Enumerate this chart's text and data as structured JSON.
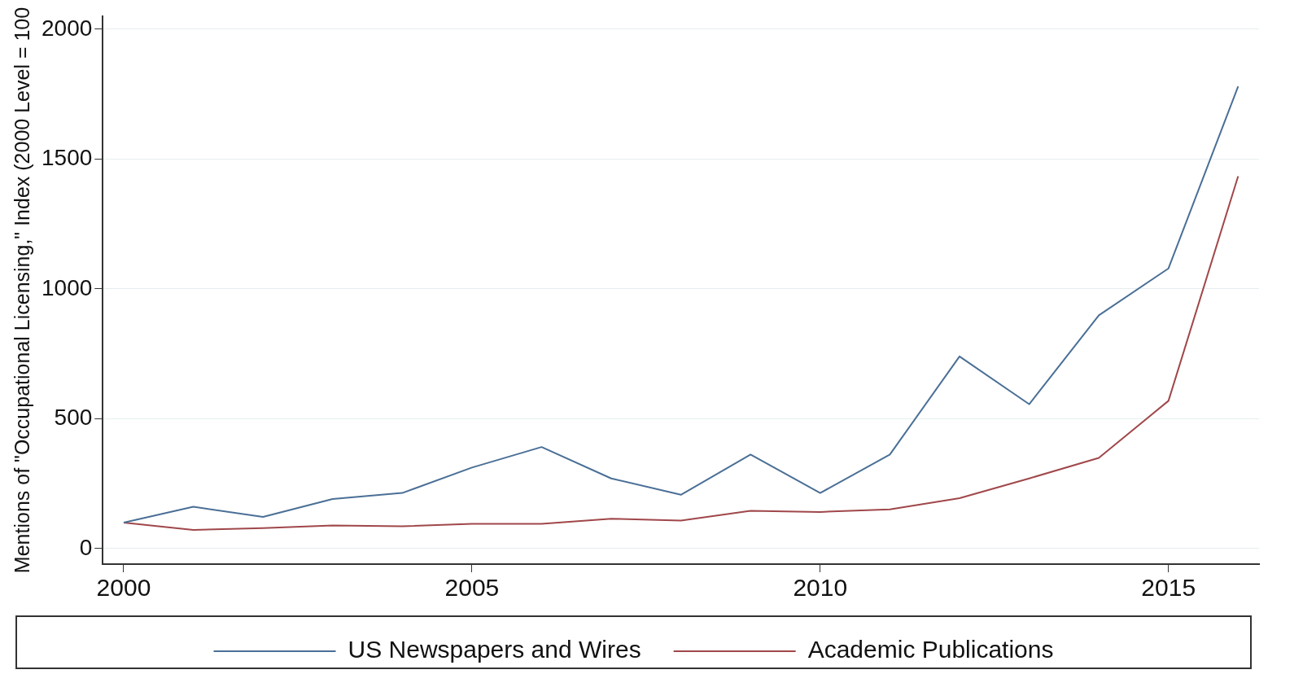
{
  "chart_data": {
    "type": "line",
    "ylabel": "Mentions of \"Occupational Licensing,\" Index (2000 Level = 100",
    "x": [
      2000,
      2001,
      2002,
      2003,
      2004,
      2005,
      2006,
      2007,
      2008,
      2009,
      2010,
      2011,
      2012,
      2013,
      2014,
      2015,
      2016
    ],
    "series": [
      {
        "name": "US Newspapers and Wires",
        "color": "#4a6f96",
        "values": [
          100,
          161,
          122,
          191,
          214,
          312,
          391,
          270,
          207,
          362,
          214,
          362,
          740,
          556,
          898,
          1079,
          1780
        ]
      },
      {
        "name": "Academic Publications",
        "color": "#a0474a",
        "values": [
          100,
          72,
          79,
          89,
          86,
          95,
          95,
          115,
          108,
          145,
          141,
          151,
          194,
          270,
          349,
          569,
          1434
        ]
      }
    ],
    "xlim": [
      1999.7,
      2016.3
    ],
    "xticks": [
      2000,
      2005,
      2010,
      2015
    ],
    "ylim": [
      -60,
      2050
    ],
    "yticks": [
      0,
      500,
      1000,
      1500,
      2000
    ],
    "grid": "y",
    "legend": "bottom",
    "marker": "none",
    "line_style": "solid"
  }
}
